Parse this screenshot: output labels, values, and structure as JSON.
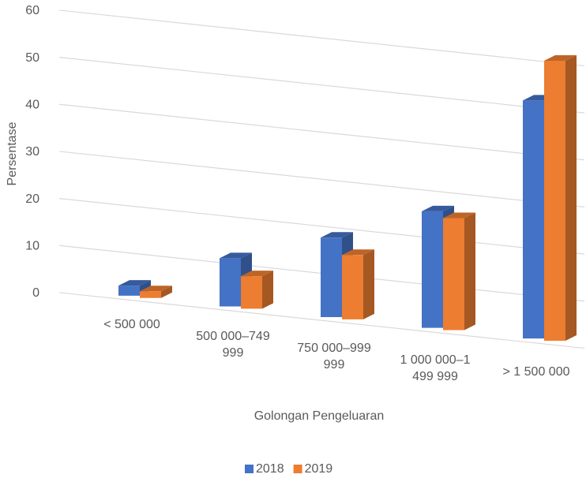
{
  "chart_data": {
    "type": "bar3d",
    "categories": [
      "< 500 000",
      "500 000–749 999",
      "750 000–999 999",
      "1 000 000–1 499 999",
      "> 1 500 000"
    ],
    "series": [
      {
        "name": "2018",
        "color": "#4472c4",
        "values": [
          1.8,
          8.6,
          14.2,
          20.8,
          42.5
        ]
      },
      {
        "name": "2019",
        "color": "#ed7d31",
        "values": [
          1.2,
          5.8,
          11.5,
          20.0,
          50.0
        ]
      }
    ],
    "xlabel": "Golongan Pengeluaran",
    "ylabel": "Persentase",
    "ylim": [
      0,
      60
    ],
    "yticks": [
      0,
      10,
      20,
      30,
      40,
      50,
      60
    ],
    "grid": true,
    "legend": "bottom"
  }
}
